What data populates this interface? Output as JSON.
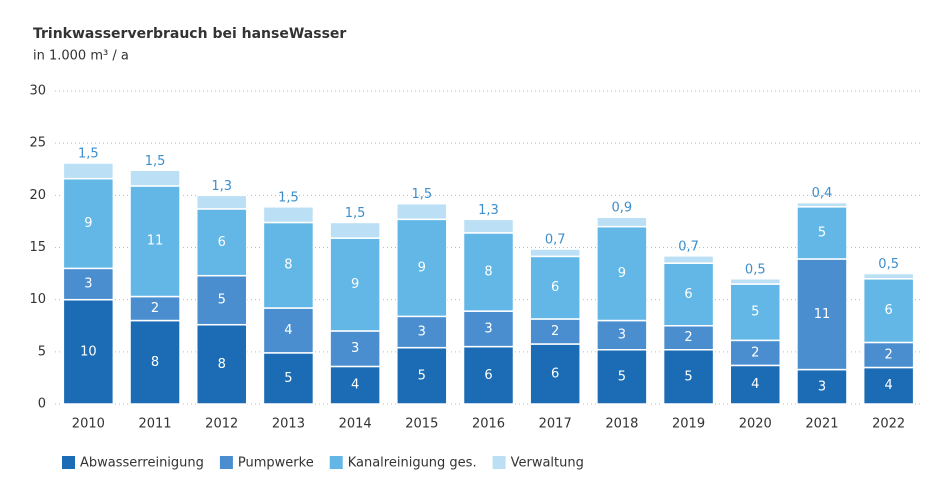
{
  "chart_data": {
    "type": "stacked_bar",
    "title": "Trinkwasserverbrauch bei hanseWasser",
    "subtitle": "in 1.000 m³ / a",
    "categories": [
      "2010",
      "2011",
      "2012",
      "2013",
      "2014",
      "2015",
      "2016",
      "2017",
      "2018",
      "2019",
      "2020",
      "2021",
      "2022"
    ],
    "series": [
      {
        "name": "Abwasserreinigung",
        "color": "#1b6cb4",
        "values": [
          10.0,
          8.0,
          7.6,
          4.9,
          3.6,
          5.4,
          5.5,
          5.75,
          5.2,
          5.2,
          3.7,
          3.3,
          3.5
        ],
        "value_labels": [
          "10",
          "8",
          "8",
          "5",
          "4",
          "5",
          "6",
          "6",
          "5",
          "5",
          "4",
          "3",
          "4"
        ]
      },
      {
        "name": "Pumpwerke",
        "color": "#4a8ecf",
        "values": [
          3.0,
          2.3,
          4.7,
          4.3,
          3.4,
          3.0,
          3.4,
          2.4,
          2.8,
          2.3,
          2.4,
          10.6,
          2.4
        ],
        "value_labels": [
          "3",
          "2",
          "5",
          "4",
          "3",
          "3",
          "3",
          "2",
          "3",
          "2",
          "2",
          "11",
          "2"
        ]
      },
      {
        "name": "Kanalreinigung ges.",
        "color": "#62b7e6",
        "values": [
          8.6,
          10.6,
          6.4,
          8.2,
          8.9,
          9.3,
          7.5,
          6.0,
          9.0,
          6.0,
          5.4,
          5.0,
          6.1
        ],
        "value_labels": [
          "9",
          "11",
          "6",
          "8",
          "9",
          "9",
          "8",
          "6",
          "9",
          "6",
          "5",
          "5",
          "6"
        ]
      },
      {
        "name": "Verwaltung",
        "color": "#bbdff4",
        "values": [
          1.5,
          1.5,
          1.3,
          1.5,
          1.5,
          1.5,
          1.3,
          0.7,
          0.9,
          0.7,
          0.5,
          0.4,
          0.5
        ],
        "value_labels": [
          "1,5",
          "1,5",
          "1,3",
          "1,5",
          "1,5",
          "1,5",
          "1,3",
          "0,7",
          "0,9",
          "0,7",
          "0,5",
          "0,4",
          "0,5"
        ]
      }
    ],
    "ylim": [
      0,
      30
    ],
    "yticks": [
      0,
      5,
      10,
      15,
      20,
      25,
      30
    ],
    "grid": true
  }
}
